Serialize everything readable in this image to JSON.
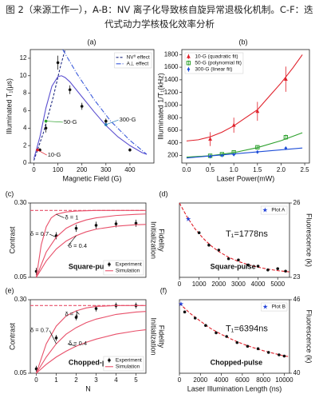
{
  "caption": "图 2（来源工作一），A-B：NV 离子化导致核自旋异常退极化机制。C-F：迭代式动力学核极化效率分析",
  "chart_data": [
    {
      "type": "scatter",
      "label": "(a)",
      "xlabel": "Magnetic Field (G)",
      "ylabel": "Illuminated T₁(μs)",
      "xlim": [
        -15,
        500
      ],
      "ylim": [
        0,
        13
      ],
      "xticks": [
        0,
        100,
        200,
        300,
        400
      ],
      "yticks": [
        0,
        2,
        4,
        6,
        8,
        10,
        12
      ],
      "legend": "upper right",
      "series": [
        {
          "name": "NV⁰ effect",
          "color": "#1f2a80",
          "mode": "line",
          "dash": "3,2",
          "x": [
            0,
            40,
            80,
            110,
            130
          ],
          "values": [
            0.3,
            3.5,
            7.5,
            11,
            13
          ]
        },
        {
          "name": "A⊥ effect",
          "color": "#3b5bdb",
          "mode": "line",
          "dash": "6,2,1,2",
          "x": [
            120,
            180,
            250,
            320,
            400,
            470
          ],
          "values": [
            13,
            10.2,
            7.3,
            4.8,
            2.6,
            1
          ]
        },
        {
          "color": "#5b4fd0",
          "mode": "line",
          "x": [
            0,
            25,
            50,
            75,
            100,
            115,
            130,
            150,
            200,
            250,
            300,
            350,
            400,
            450,
            470
          ],
          "values": [
            0.5,
            3,
            6.3,
            8.8,
            9.9,
            10.0,
            9.8,
            9.3,
            7.6,
            5.9,
            4.3,
            3.0,
            2.0,
            1.2,
            1.0
          ]
        },
        {
          "color": "#111111",
          "mode": "markers",
          "x": [
            25,
            50,
            100,
            150,
            200,
            300,
            400
          ],
          "values": [
            1.5,
            4.0,
            11.5,
            8.4,
            6.5,
            4.8,
            1.5
          ],
          "errors": [
            0.2,
            0.5,
            0.8,
            0.5,
            0.4,
            0.3,
            0.2
          ]
        },
        {
          "label": "10-G",
          "color": "#e0202a",
          "mode": "markers",
          "x": [
            15
          ],
          "values": [
            1.5
          ]
        },
        {
          "label": "50-G",
          "color": "#2ca02c",
          "mode": "markers",
          "x": [
            50
          ],
          "values": [
            4.8
          ]
        },
        {
          "label": "300-G",
          "color": "#1f77b4",
          "mode": "markers",
          "x": [
            300
          ],
          "values": [
            4.4
          ]
        }
      ]
    },
    {
      "type": "scatter",
      "label": "(b)",
      "xlabel": "Laser Power(mW)",
      "ylabel": "Illuminated 1/T₁(kHz)",
      "xlim": [
        -0.1,
        2.6
      ],
      "ylim": [
        80,
        1880
      ],
      "xticks": [
        {
          "value": 0,
          "label": "0.0"
        },
        0.5,
        {
          "value": 1,
          "label": "1.0"
        },
        1.5,
        {
          "value": 2,
          "label": "2.0"
        },
        2.5
      ],
      "yticks": [
        200,
        400,
        600,
        800,
        1000,
        1200,
        1400,
        1600,
        1800
      ],
      "legend": "upper left",
      "series": [
        {
          "name": "10-G (quadratic fit)",
          "color": "#e0202a",
          "mode": "markers",
          "marker": "triangle",
          "x": [
            0.5,
            1.0,
            1.5,
            2.1
          ],
          "values": [
            460,
            680,
            900,
            1410
          ],
          "errors": [
            110,
            120,
            150,
            200
          ]
        },
        {
          "name": "50-G (polynomial fit)",
          "color": "#2ca02c",
          "mode": "markers",
          "marker": "square",
          "x": [
            0.5,
            0.75,
            1.0,
            1.5,
            2.1
          ],
          "values": [
            195,
            220,
            250,
            330,
            490
          ],
          "errors": [
            25,
            20,
            20,
            25,
            40
          ]
        },
        {
          "name": "300-G (linear fit)",
          "color": "#1f4fd8",
          "mode": "markers",
          "marker": "diamond",
          "x": [
            0.5,
            0.75,
            1.0,
            1.5,
            2.1
          ],
          "values": [
            185,
            200,
            215,
            255,
            315
          ],
          "errors": [
            30,
            20,
            20,
            25,
            25
          ]
        },
        {
          "color": "#e0202a",
          "mode": "line",
          "x": [
            0,
            0.25,
            0.5,
            0.75,
            1,
            1.25,
            1.5,
            1.75,
            2,
            2.25,
            2.45
          ],
          "values": [
            430,
            449,
            495,
            569,
            670,
            799,
            925,
            1139,
            1350,
            1589,
            1799
          ]
        },
        {
          "color": "#2ca02c",
          "mode": "line",
          "x": [
            0,
            0.5,
            1,
            1.5,
            2,
            2.45
          ],
          "values": [
            175,
            195,
            245,
            325,
            435,
            560
          ]
        },
        {
          "color": "#1f4fd8",
          "mode": "line",
          "x": [
            0,
            2.45
          ],
          "values": [
            160,
            319
          ]
        }
      ]
    },
    {
      "type": "scatter",
      "label": "(c)",
      "ylabel": "Contrast",
      "y2label": [
        "Initialization",
        "Fidelity"
      ],
      "xlim": [
        -0.3,
        5.5
      ],
      "ylim": [
        0.05,
        0.3
      ],
      "yticks": [
        0.05,
        {
          "value": 0.3,
          "label": "0.30"
        }
      ],
      "legend": "lower right",
      "annotations": [
        "Square-pulse"
      ],
      "series": [
        {
          "name": "Experiment",
          "color": "#111111",
          "mode": "markers",
          "x": [
            0,
            1,
            2,
            3,
            4,
            5
          ],
          "values": [
            0.07,
            0.19,
            0.215,
            0.225,
            0.23,
            0.232
          ],
          "errors": [
            0.012,
            0.012,
            0.012,
            0.012,
            0.012,
            0.012
          ]
        },
        {
          "color": "#e8506a",
          "mode": "line",
          "dash": "4,2",
          "x": [
            -0.3,
            5.5
          ],
          "values": [
            0.275,
            0.275
          ]
        },
        {
          "name": "Simulation",
          "label": "δ = 1",
          "color": "#e8506a",
          "mode": "line",
          "x": [
            0,
            0.25,
            0.5,
            0.75,
            1,
            1.5,
            2,
            3,
            4,
            5,
            5.5
          ],
          "values": [
            0.05,
            0.16,
            0.22,
            0.25,
            0.262,
            0.27,
            0.273,
            0.275,
            0.275,
            0.275,
            0.275
          ]
        },
        {
          "label": "δ = 0.7",
          "color": "#e8506a",
          "mode": "line",
          "x": [
            0,
            0.5,
            1,
            1.5,
            2,
            2.5,
            3,
            4,
            5,
            5.5
          ],
          "values": [
            0.05,
            0.135,
            0.185,
            0.215,
            0.232,
            0.243,
            0.25,
            0.258,
            0.262,
            0.263
          ]
        },
        {
          "label": "δ = 0.4",
          "color": "#e8506a",
          "mode": "line",
          "x": [
            0,
            0.5,
            1,
            1.5,
            2,
            2.5,
            3,
            4,
            5,
            5.5
          ],
          "values": [
            0.05,
            0.105,
            0.145,
            0.172,
            0.19,
            0.203,
            0.212,
            0.222,
            0.227,
            0.228
          ]
        }
      ]
    },
    {
      "type": "scatter",
      "label": "(d)",
      "ylabel": "Fluorescence (k)",
      "y_side": "right",
      "xlim": [
        0,
        5600
      ],
      "ylim": [
        23,
        26
      ],
      "xticks": [
        0,
        1000,
        2000,
        3000,
        4000,
        5000
      ],
      "yticks": [
        23,
        26
      ],
      "legend": "upper right",
      "annotations": [
        "T₁=1778ns",
        "Square-pulse"
      ],
      "series": [
        {
          "color": "#e0202a",
          "mode": "line",
          "dash": "4,2",
          "x": [
            0,
            400,
            800,
            1200,
            1600,
            2000,
            2500,
            3000,
            3500,
            4000,
            4500,
            5000,
            5600
          ],
          "values": [
            26.0,
            25.42,
            24.95,
            24.58,
            24.28,
            24.04,
            23.81,
            23.64,
            23.51,
            23.41,
            23.33,
            23.27,
            23.22
          ]
        },
        {
          "color": "#111111",
          "mode": "markers",
          "x": [
            1000,
            1500,
            2000,
            2500,
            3000,
            3500,
            4000,
            4500,
            5000,
            5400
          ],
          "values": [
            24.8,
            24.3,
            24.1,
            23.75,
            23.7,
            23.5,
            23.45,
            23.3,
            23.35,
            23.25
          ]
        },
        {
          "name": "Plot A",
          "color": "#1f3fd8",
          "mode": "markers",
          "marker": "star",
          "x": [
            450
          ],
          "values": [
            25.35
          ]
        }
      ]
    },
    {
      "type": "scatter",
      "label": "(e)",
      "xlabel": "N",
      "ylabel": "Contrast",
      "y2label": [
        "Initialization",
        "Fidelity"
      ],
      "xlim": [
        -0.3,
        5.5
      ],
      "ylim": [
        0.05,
        0.3
      ],
      "xticks": [
        0,
        1,
        2,
        3,
        4,
        5
      ],
      "yticks": [
        0.05,
        {
          "value": 0.3,
          "label": "0.30"
        }
      ],
      "legend": "lower right",
      "annotations": [
        "Chopped-pulse"
      ],
      "series": [
        {
          "name": "Experiment",
          "color": "#111111",
          "mode": "markers",
          "x": [
            0,
            1,
            2,
            3,
            4,
            5
          ],
          "values": [
            0.065,
            0.17,
            0.24,
            0.27,
            0.28,
            0.28
          ],
          "errors": [
            0.01,
            0.01,
            0.01,
            0.01,
            0.01,
            0.01
          ]
        },
        {
          "color": "#e8506a",
          "mode": "line",
          "dash": "4,2",
          "x": [
            -0.3,
            5.5
          ],
          "values": [
            0.28,
            0.28
          ]
        },
        {
          "name": "Simulation",
          "label": "δ = 1",
          "color": "#e8506a",
          "mode": "line",
          "x": [
            0,
            0.5,
            1,
            1.5,
            2,
            2.5,
            3,
            4,
            5,
            5.5
          ],
          "values": [
            0.05,
            0.15,
            0.21,
            0.245,
            0.262,
            0.272,
            0.277,
            0.28,
            0.28,
            0.28
          ]
        },
        {
          "label": "δ = 0.7",
          "color": "#e8506a",
          "mode": "line",
          "x": [
            0,
            0.5,
            1,
            1.5,
            2,
            2.5,
            3,
            4,
            5,
            5.5
          ],
          "values": [
            0.05,
            0.105,
            0.15,
            0.183,
            0.205,
            0.222,
            0.234,
            0.25,
            0.258,
            0.26
          ]
        },
        {
          "label": "δ = 0.4",
          "color": "#e8506a",
          "mode": "line",
          "x": [
            0,
            0.5,
            1,
            1.5,
            2,
            2.5,
            3,
            4,
            5,
            5.5
          ],
          "values": [
            0.05,
            0.08,
            0.105,
            0.125,
            0.142,
            0.155,
            0.166,
            0.183,
            0.194,
            0.198
          ]
        }
      ]
    },
    {
      "type": "scatter",
      "label": "(f)",
      "xlabel": "Laser Illumination Length (ns)",
      "ylabel": "Fluorescence (k)",
      "y_side": "right",
      "xlim": [
        0,
        10500
      ],
      "ylim": [
        40,
        46
      ],
      "xticks": [
        0,
        2000,
        4000,
        6000,
        8000,
        10000
      ],
      "yticks": [
        40,
        46
      ],
      "legend": "upper right",
      "annotations": [
        "T₁=6394ns",
        "Chopped-pulse"
      ],
      "series": [
        {
          "color": "#e0202a",
          "mode": "line",
          "dash": "4,2",
          "x": [
            0,
            1000,
            2000,
            3000,
            4000,
            5000,
            6000,
            7000,
            8000,
            9000,
            10000,
            10500
          ],
          "values": [
            45.7,
            44.9,
            44.25,
            43.64,
            43.17,
            42.76,
            42.4,
            42.1,
            41.84,
            41.62,
            41.41,
            41.35
          ]
        },
        {
          "color": "#111111",
          "mode": "markers",
          "x": [
            500,
            1500,
            2500,
            3500,
            4500,
            5500,
            6500,
            7500,
            8500,
            9500,
            10000
          ],
          "values": [
            45.0,
            44.5,
            43.9,
            43.3,
            43.0,
            42.5,
            42.2,
            42.0,
            41.7,
            41.5,
            41.4
          ]
        },
        {
          "name": "Plot B",
          "color": "#1f3fd8",
          "mode": "markers",
          "marker": "star",
          "x": [
            150
          ],
          "values": [
            45.65
          ]
        }
      ]
    }
  ]
}
